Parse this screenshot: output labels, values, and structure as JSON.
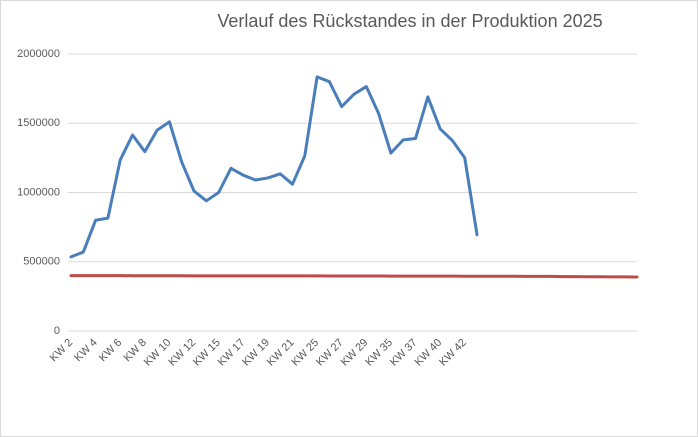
{
  "chart_data": {
    "type": "line",
    "title": "Verlauf des Rückstandes in der Produktion 2025",
    "categories": [
      "KW 2",
      null,
      "KW 4",
      null,
      "KW 6",
      null,
      "KW 8",
      null,
      "KW 10",
      null,
      "KW 12",
      null,
      "KW 15",
      null,
      "KW 17",
      null,
      "KW 19",
      null,
      "KW 21",
      null,
      "KW 25",
      null,
      "KW 27",
      null,
      "KW 29",
      null,
      "KW 35",
      null,
      "KW 37",
      null,
      "KW 40",
      null,
      "KW 42",
      null,
      null,
      null,
      null,
      null,
      null,
      null,
      null,
      null,
      null,
      null,
      null,
      null,
      null
    ],
    "series": [
      {
        "color": "#4a7ebb",
        "values": [
          535000,
          570000,
          800000,
          815000,
          1235000,
          1415000,
          1295000,
          1450000,
          1510000,
          1220000,
          1010000,
          940000,
          1000000,
          1175000,
          1125000,
          1090000,
          1105000,
          1135000,
          1060000,
          1265000,
          1835000,
          1800000,
          1620000,
          1710000,
          1765000,
          1570000,
          1285000,
          1380000,
          1390000,
          1690000,
          1460000,
          1375000,
          1250000,
          695000,
          null,
          null,
          null,
          null,
          null,
          null,
          null,
          null,
          null,
          null,
          null,
          null,
          null
        ]
      },
      {
        "color": "#be4b48",
        "values": [
          400000,
          400000,
          400000,
          400000,
          400000,
          399000,
          399000,
          399000,
          399000,
          399000,
          398000,
          398000,
          398000,
          398000,
          398000,
          398000,
          398000,
          398000,
          398000,
          398000,
          398000,
          397000,
          397000,
          397000,
          397000,
          397000,
          396000,
          396000,
          396000,
          396000,
          396000,
          396000,
          395000,
          395000,
          395000,
          395000,
          395000,
          394000,
          394000,
          394000,
          393000,
          393000,
          392000,
          392000,
          391000,
          391000,
          390000
        ]
      }
    ],
    "ylim": [
      0,
      2000000
    ],
    "yticks": [
      0,
      500000,
      1000000,
      1500000,
      2000000
    ],
    "grid": true
  }
}
